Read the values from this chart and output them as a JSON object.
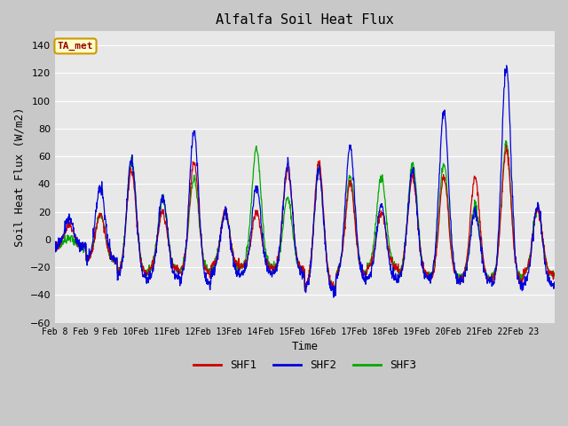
{
  "title": "Alfalfa Soil Heat Flux",
  "ylabel": "Soil Heat Flux (W/m2)",
  "xlabel": "Time",
  "ylim": [
    -60,
    150
  ],
  "yticks": [
    -60,
    -40,
    -20,
    0,
    20,
    40,
    60,
    80,
    100,
    120,
    140
  ],
  "fig_bg": "#c8c8c8",
  "plot_bg": "#e8e8e8",
  "shf1_color": "#cc0000",
  "shf2_color": "#0000dd",
  "shf3_color": "#00aa00",
  "annotation_text": "TA_met",
  "annotation_bg": "#ffffcc",
  "annotation_border": "#cc9900",
  "legend_labels": [
    "SHF1",
    "SHF2",
    "SHF3"
  ],
  "xtick_labels": [
    "Feb 8",
    "Feb 9",
    "Feb 10",
    "Feb 11",
    "Feb 12",
    "Feb 13",
    "Feb 14",
    "Feb 15",
    "Feb 16",
    "Feb 17",
    "Feb 18",
    "Feb 19",
    "Feb 20",
    "Feb 21",
    "Feb 22",
    "Feb 23"
  ]
}
